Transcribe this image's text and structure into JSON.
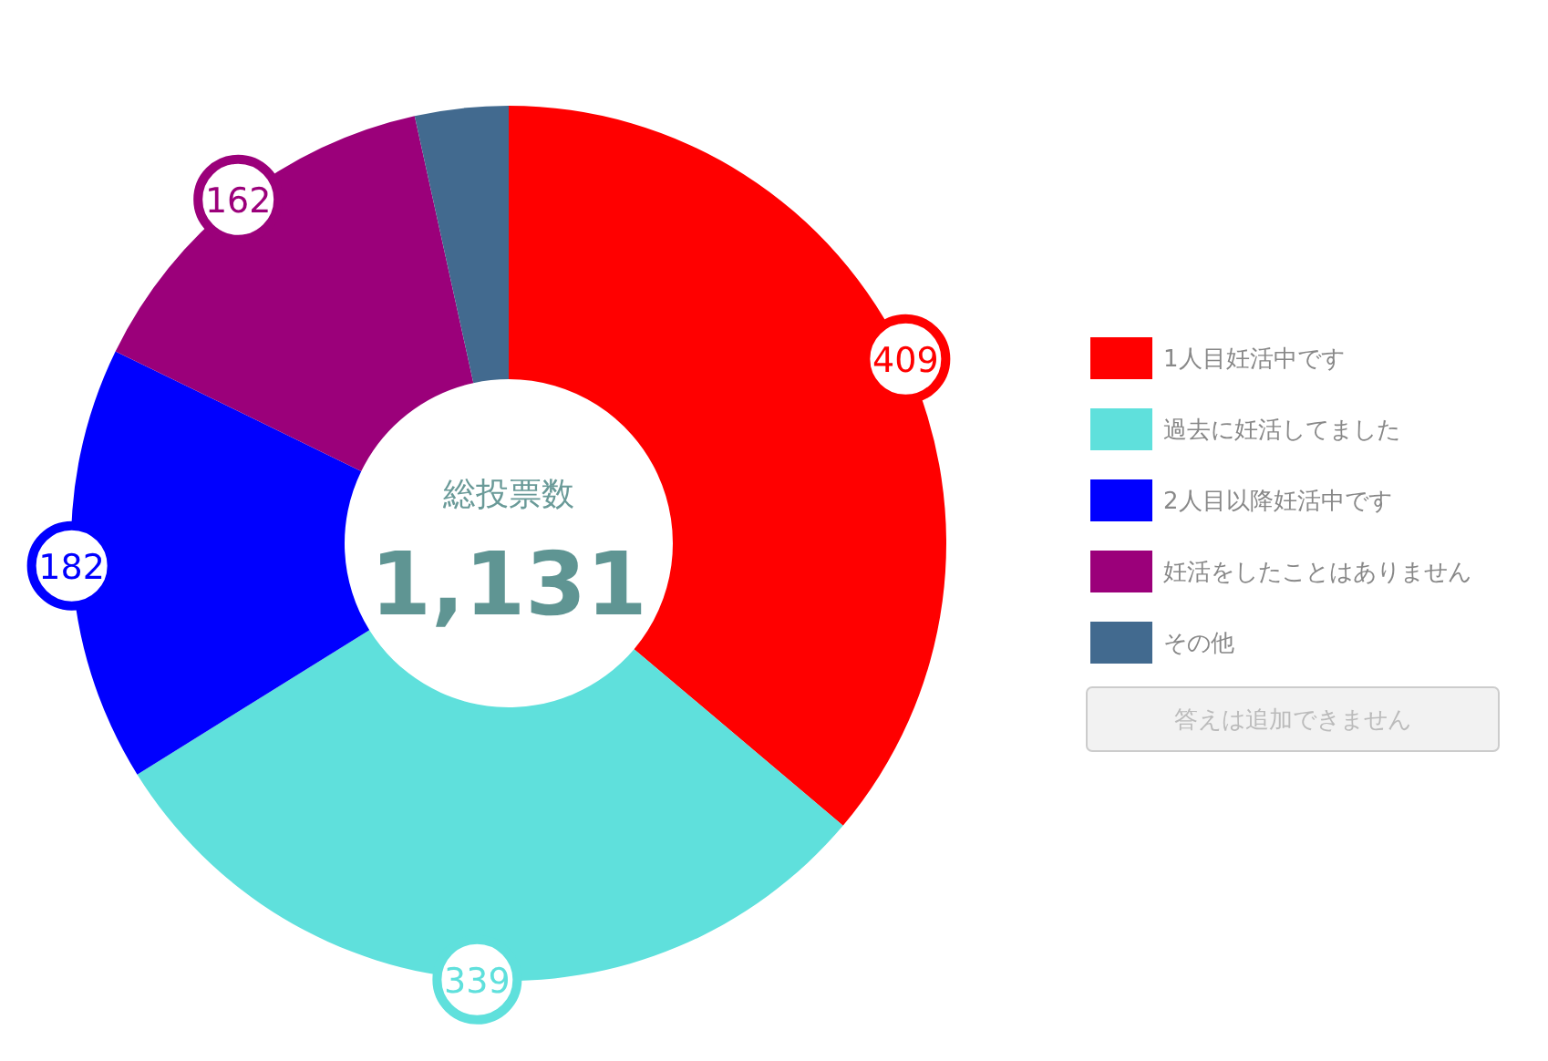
{
  "chart_data": {
    "type": "donut",
    "categories": [
      "1人目妊活中です",
      "過去に妊活してました",
      "2人目以降妊活中です",
      "妊活をしたことはありません",
      "その他"
    ],
    "values": [
      409,
      339,
      182,
      162,
      39
    ],
    "colors": [
      "#ff0000",
      "#5fe0dc",
      "#0000ff",
      "#9b007a",
      "#426a8f"
    ],
    "value_labels": [
      "409",
      "339",
      "182",
      "162",
      null
    ],
    "annotations": [
      "総投票数",
      "1,131",
      "答えは追加できません"
    ],
    "legend": "right"
  }
}
